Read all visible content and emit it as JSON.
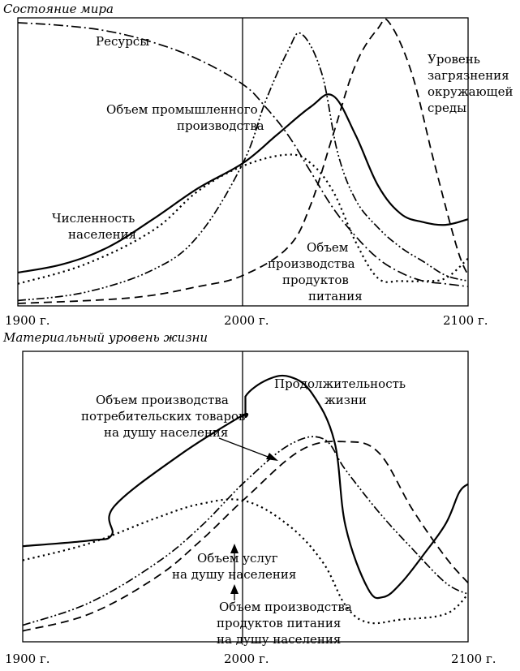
{
  "chart_data": [
    {
      "type": "line",
      "title": "Состояние мира",
      "x_ticks": [
        "1900 г.",
        "2000 г.",
        "2100 г."
      ],
      "xlim": [
        1900,
        2100
      ],
      "series": [
        {
          "name": "Ресурсы",
          "style": "dash-dot",
          "points": [
            [
              1900,
              1.0
            ],
            [
              1920,
              0.99
            ],
            [
              1940,
              0.97
            ],
            [
              1960,
              0.93
            ],
            [
              1980,
              0.87
            ],
            [
              2000,
              0.78
            ],
            [
              2010,
              0.7
            ],
            [
              2020,
              0.6
            ],
            [
              2030,
              0.47
            ],
            [
              2040,
              0.34
            ],
            [
              2050,
              0.24
            ],
            [
              2060,
              0.16
            ],
            [
              2070,
              0.11
            ],
            [
              2080,
              0.08
            ],
            [
              2090,
              0.07
            ],
            [
              2100,
              0.06
            ]
          ]
        },
        {
          "name": "Объем промышленного производства",
          "style": "dash-dot-dot",
          "points": [
            [
              1900,
              0.01
            ],
            [
              1930,
              0.04
            ],
            [
              1960,
              0.12
            ],
            [
              1980,
              0.24
            ],
            [
              2000,
              0.5
            ],
            [
              2010,
              0.72
            ],
            [
              2020,
              0.9
            ],
            [
              2026,
              0.96
            ],
            [
              2035,
              0.82
            ],
            [
              2042,
              0.54
            ],
            [
              2050,
              0.37
            ],
            [
              2060,
              0.27
            ],
            [
              2070,
              0.2
            ],
            [
              2080,
              0.15
            ],
            [
              2090,
              0.1
            ],
            [
              2100,
              0.08
            ]
          ]
        },
        {
          "name": "Уровень загрязнения окружающей среды",
          "style": "dash",
          "points": [
            [
              1900,
              0.0
            ],
            [
              1950,
              0.02
            ],
            [
              1980,
              0.06
            ],
            [
              2000,
              0.1
            ],
            [
              2020,
              0.2
            ],
            [
              2030,
              0.35
            ],
            [
              2040,
              0.6
            ],
            [
              2050,
              0.85
            ],
            [
              2060,
              0.98
            ],
            [
              2065,
              1.0
            ],
            [
              2075,
              0.82
            ],
            [
              2085,
              0.5
            ],
            [
              2095,
              0.2
            ],
            [
              2100,
              0.1
            ]
          ]
        },
        {
          "name": "Численность населения",
          "style": "solid",
          "points": [
            [
              1900,
              0.11
            ],
            [
              1920,
              0.14
            ],
            [
              1940,
              0.2
            ],
            [
              1960,
              0.3
            ],
            [
              1980,
              0.41
            ],
            [
              2000,
              0.5
            ],
            [
              2015,
              0.6
            ],
            [
              2030,
              0.7
            ],
            [
              2040,
              0.74
            ],
            [
              2050,
              0.6
            ],
            [
              2060,
              0.42
            ],
            [
              2070,
              0.32
            ],
            [
              2080,
              0.29
            ],
            [
              2090,
              0.28
            ],
            [
              2100,
              0.3
            ]
          ]
        },
        {
          "name": "Объем производства продуктов питания",
          "style": "dot",
          "points": [
            [
              1900,
              0.07
            ],
            [
              1930,
              0.14
            ],
            [
              1960,
              0.26
            ],
            [
              1980,
              0.4
            ],
            [
              2000,
              0.49
            ],
            [
              2020,
              0.53
            ],
            [
              2030,
              0.5
            ],
            [
              2040,
              0.4
            ],
            [
              2050,
              0.22
            ],
            [
              2060,
              0.09
            ],
            [
              2070,
              0.08
            ],
            [
              2080,
              0.08
            ],
            [
              2090,
              0.09
            ],
            [
              2100,
              0.16
            ]
          ]
        }
      ],
      "annotations": [
        {
          "label": "Ресурсы"
        },
        {
          "label": "Уровень загрязнения окружающей среды"
        },
        {
          "label": "Объем промышленного производства"
        },
        {
          "label": "Численность населения"
        },
        {
          "label": "Объем производства продуктов питания"
        }
      ]
    },
    {
      "type": "line",
      "title": "Материальный уровень жизни",
      "x_ticks": [
        "1900 г.",
        "2000 г.",
        "2100 г."
      ],
      "xlim": [
        1900,
        2100
      ],
      "series": [
        {
          "name": "Продолжительность жизни",
          "style": "solid",
          "points": [
            [
              1900,
              0.33
            ],
            [
              1930,
              0.35
            ],
            [
              1940,
              0.37
            ],
            [
              1941,
              0.47
            ],
            [
              1970,
              0.65
            ],
            [
              1998,
              0.79
            ],
            [
              2000,
              0.79
            ],
            [
              2000,
              0.86
            ],
            [
              2010,
              0.92
            ],
            [
              2020,
              0.93
            ],
            [
              2030,
              0.87
            ],
            [
              2040,
              0.7
            ],
            [
              2045,
              0.4
            ],
            [
              2055,
              0.18
            ],
            [
              2062,
              0.15
            ],
            [
              2070,
              0.2
            ],
            [
              2080,
              0.3
            ],
            [
              2090,
              0.41
            ],
            [
              2096,
              0.52
            ],
            [
              2100,
              0.55
            ]
          ]
        },
        {
          "name": "Объем производства потребительских товаров на душу населения",
          "style": "dash-dot-dot",
          "points": [
            [
              1900,
              0.05
            ],
            [
              1930,
              0.13
            ],
            [
              1960,
              0.27
            ],
            [
              1980,
              0.4
            ],
            [
              2000,
              0.56
            ],
            [
              2020,
              0.69
            ],
            [
              2035,
              0.71
            ],
            [
              2045,
              0.6
            ],
            [
              2060,
              0.45
            ],
            [
              2075,
              0.32
            ],
            [
              2090,
              0.2
            ],
            [
              2100,
              0.16
            ]
          ]
        },
        {
          "name": "Объем услуг на душу населения",
          "style": "dash",
          "points": [
            [
              1900,
              0.03
            ],
            [
              1930,
              0.09
            ],
            [
              1960,
              0.22
            ],
            [
              1980,
              0.35
            ],
            [
              2000,
              0.5
            ],
            [
              2025,
              0.67
            ],
            [
              2045,
              0.7
            ],
            [
              2060,
              0.66
            ],
            [
              2075,
              0.46
            ],
            [
              2090,
              0.29
            ],
            [
              2100,
              0.2
            ]
          ]
        },
        {
          "name": "Объем производства продуктов питания на душу населения",
          "style": "dot",
          "points": [
            [
              1900,
              0.28
            ],
            [
              1930,
              0.34
            ],
            [
              1960,
              0.43
            ],
            [
              1980,
              0.48
            ],
            [
              2000,
              0.49
            ],
            [
              2020,
              0.4
            ],
            [
              2035,
              0.27
            ],
            [
              2045,
              0.12
            ],
            [
              2055,
              0.06
            ],
            [
              2070,
              0.07
            ],
            [
              2090,
              0.09
            ],
            [
              2100,
              0.16
            ]
          ]
        }
      ],
      "annotations": [
        {
          "label": "Продолжительность жизни"
        },
        {
          "label": "Объем производства потребительских товаров на душу населения"
        },
        {
          "label": "Объем услуг на душу населения"
        },
        {
          "label": "Объем производства продуктов питания на душу населения"
        }
      ]
    }
  ]
}
